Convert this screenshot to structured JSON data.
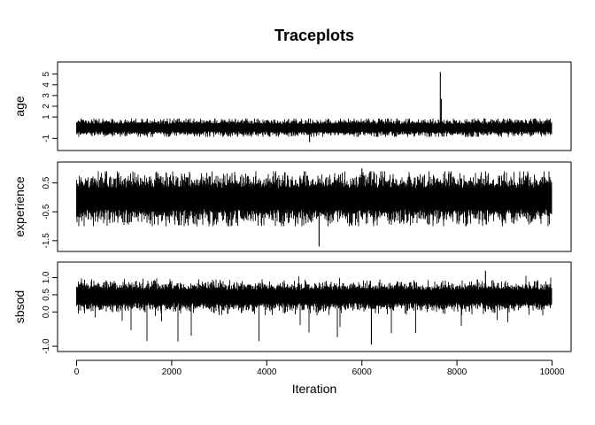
{
  "chart_data": {
    "type": "line",
    "title": "Traceplots",
    "xlabel": "Iteration",
    "xlim": [
      0,
      10000
    ],
    "x_ticks": [
      0,
      2000,
      4000,
      6000,
      8000,
      10000
    ],
    "x_tick_labels": [
      "0",
      "2000",
      "4000",
      "6000",
      "8000",
      "10000"
    ],
    "n_iterations": 10000,
    "grid": false,
    "legend": "none",
    "line_color": "#000000",
    "panels": [
      {
        "ylabel": "age",
        "ylim": [
          -1.8,
          5.8
        ],
        "y_ticks": [
          -1,
          1,
          2,
          3,
          4,
          5
        ],
        "y_tick_labels": [
          "-1",
          "1",
          "2",
          "3",
          "4",
          "5"
        ],
        "center": 0.0,
        "spread": 0.28,
        "max_dev": 0.85,
        "spikes": [
          {
            "x": 4900,
            "y": -1.35
          },
          {
            "x": 7650,
            "y": 5.2
          },
          {
            "x": 7670,
            "y": 2.7
          }
        ]
      },
      {
        "ylabel": "experience",
        "ylim": [
          -1.75,
          1.1
        ],
        "y_ticks": [
          -1.5,
          -0.5,
          0.5
        ],
        "y_tick_labels": [
          "-1.5",
          "-0.5",
          "0.5"
        ],
        "center": -0.05,
        "spread": 0.3,
        "max_dev": 0.95,
        "spikes": [
          {
            "x": 5100,
            "y": -1.7
          },
          {
            "x": 6000,
            "y": 1.0
          }
        ]
      },
      {
        "ylabel": "sbsod",
        "ylim": [
          -1.05,
          1.35
        ],
        "y_ticks": [
          -1.0,
          0.0,
          0.5,
          1.0
        ],
        "y_tick_labels": [
          "-1.0",
          "0.0",
          "0.5",
          "1.0"
        ],
        "center": 0.45,
        "spread": 0.15,
        "max_dev": 0.7,
        "dip_rate": 0.02,
        "dip_depth": [
          -0.9,
          0.0
        ],
        "spikes": [
          {
            "x": 6200,
            "y": -0.95
          },
          {
            "x": 8600,
            "y": 1.2
          }
        ]
      }
    ]
  }
}
